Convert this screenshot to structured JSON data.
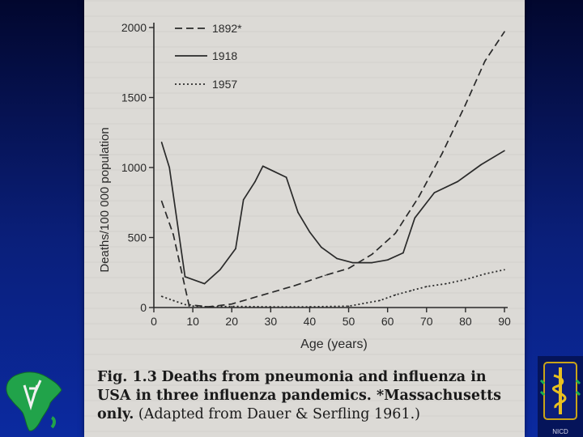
{
  "chart_data": {
    "type": "line",
    "xlabel": "Age (years)",
    "ylabel": "Deaths/100 000 population",
    "xlim": [
      0,
      90
    ],
    "ylim": [
      0,
      2000
    ],
    "xticks": [
      0,
      10,
      20,
      30,
      40,
      50,
      60,
      70,
      80,
      90
    ],
    "yticks": [
      0,
      500,
      1000,
      1500,
      2000
    ],
    "series": [
      {
        "name": "1892*",
        "style": "dashed",
        "x": [
          2,
          5,
          9,
          14,
          20,
          28,
          36,
          44,
          50,
          56,
          62,
          68,
          74,
          80,
          85,
          90
        ],
        "y": [
          760,
          520,
          20,
          5,
          25,
          90,
          155,
          230,
          280,
          380,
          530,
          790,
          1100,
          1450,
          1760,
          1970
        ]
      },
      {
        "name": "1918",
        "style": "solid",
        "x": [
          2,
          4,
          8,
          13,
          17,
          21,
          23,
          26,
          28,
          31,
          34,
          37,
          40,
          43,
          47,
          51,
          56,
          60,
          64,
          67,
          72,
          78,
          84,
          90
        ],
        "y": [
          1180,
          1000,
          220,
          170,
          270,
          420,
          770,
          900,
          1010,
          970,
          930,
          680,
          540,
          430,
          350,
          320,
          320,
          340,
          390,
          640,
          820,
          900,
          1020,
          1120
        ]
      },
      {
        "name": "1957",
        "style": "dotted",
        "x": [
          2,
          5,
          9,
          14,
          20,
          30,
          40,
          50,
          58,
          62,
          66,
          70,
          75,
          80,
          85,
          90
        ],
        "y": [
          80,
          50,
          12,
          5,
          8,
          5,
          5,
          10,
          50,
          90,
          120,
          150,
          170,
          200,
          240,
          270
        ]
      }
    ]
  },
  "caption": {
    "fig_label": "Fig. 1.3",
    "text": "Deaths from pneumonia and influenza in USA in three influenza pandemics. *Massachusetts only.",
    "source": "(Adapted from Dauer & Serfling 1961.)"
  },
  "logo_right_label": "NICD",
  "colors": {
    "ink": "#2a2a2a",
    "paper": "#dcdad6",
    "background": "#0a1f7a"
  }
}
